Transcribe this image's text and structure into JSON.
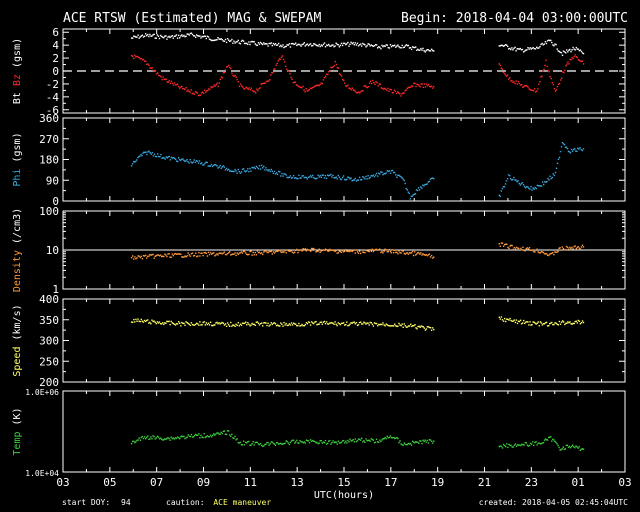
{
  "header": {
    "title": "ACE RTSW (Estimated) MAG & SWEPAM",
    "begin": "Begin: 2018-04-04 03:00:00UTC"
  },
  "footer": {
    "start_doy_label": "start DOY:",
    "start_doy_value": "94",
    "caution_label": "caution:",
    "caution_value": "ACE maneuver",
    "created": "created: 2018-04-05 02:45:04UTC"
  },
  "colors": {
    "background": "#000000",
    "axes": "#ffffff",
    "bt": "#ffffff",
    "bz": "#ff2a2a",
    "phi": "#3aa8e0",
    "density": "#ff9a3c",
    "speed": "#ffff66",
    "temp": "#3ccf3c",
    "caution": "#ffff66"
  },
  "chart_data": {
    "type": "scatter",
    "xlabel": "UTC(hours)",
    "x_unit": "hours since begin",
    "x_tick_labels": [
      "03",
      "05",
      "07",
      "09",
      "11",
      "13",
      "15",
      "17",
      "19",
      "21",
      "23",
      "01",
      "03"
    ],
    "panels": [
      {
        "id": "mag",
        "ylabel_parts": [
          {
            "text": "Bt",
            "color": "#ffffff"
          },
          {
            "text": " Bz",
            "color": "#ff2a2a"
          },
          {
            "text": " (gsm)",
            "color": "#ffffff"
          }
        ],
        "ylim": [
          -6.5,
          6.5
        ],
        "scale": "linear",
        "y_ticks": [
          6,
          4,
          2,
          0,
          -2,
          -4,
          -6
        ],
        "y_tick_labels": [
          "6",
          "4",
          "2",
          "0",
          "-2",
          "-4",
          "-6"
        ],
        "dashed_line": 0,
        "series": [
          {
            "name": "Bt",
            "color": "#ffffff",
            "segments": [
              [
                [
                  2.9,
                  5.2
                ],
                [
                  3.5,
                  5.6
                ],
                [
                  4.5,
                  5.3
                ],
                [
                  5.5,
                  5.7
                ],
                [
                  6.5,
                  5.0
                ],
                [
                  7.5,
                  4.6
                ],
                [
                  8.5,
                  4.2
                ],
                [
                  9.5,
                  4.0
                ],
                [
                  10.5,
                  4.3
                ],
                [
                  11.5,
                  4.1
                ],
                [
                  12.5,
                  4.3
                ],
                [
                  13.5,
                  3.8
                ],
                [
                  14.5,
                  4.0
                ],
                [
                  15.3,
                  3.4
                ],
                [
                  15.8,
                  3.2
                ]
              ],
              [
                [
                  18.6,
                  4.2
                ],
                [
                  19.5,
                  3.3
                ],
                [
                  20.2,
                  3.6
                ],
                [
                  20.8,
                  4.8
                ],
                [
                  21.3,
                  2.8
                ],
                [
                  21.8,
                  3.6
                ],
                [
                  22.2,
                  2.8
                ]
              ]
            ]
          },
          {
            "name": "Bz",
            "color": "#ff2a2a",
            "segments": [
              [
                [
                  2.9,
                  2.5
                ],
                [
                  3.5,
                  1.5
                ],
                [
                  4.2,
                  -1.0
                ],
                [
                  5.0,
                  -2.5
                ],
                [
                  5.8,
                  -3.5
                ],
                [
                  6.6,
                  -2.0
                ],
                [
                  7.0,
                  1.0
                ],
                [
                  7.6,
                  -2.5
                ],
                [
                  8.2,
                  -3.0
                ],
                [
                  8.8,
                  -1.0
                ],
                [
                  9.3,
                  2.5
                ],
                [
                  9.8,
                  -1.5
                ],
                [
                  10.4,
                  -3.0
                ],
                [
                  11.0,
                  -2.0
                ],
                [
                  11.6,
                  1.5
                ],
                [
                  12.0,
                  -2.0
                ],
                [
                  12.6,
                  -3.2
                ],
                [
                  13.2,
                  -1.5
                ],
                [
                  13.8,
                  -2.8
                ],
                [
                  14.4,
                  -3.5
                ],
                [
                  15.0,
                  -2.0
                ],
                [
                  15.8,
                  -2.3
                ]
              ],
              [
                [
                  18.6,
                  1.0
                ],
                [
                  19.0,
                  -1.0
                ],
                [
                  19.6,
                  -2.2
                ],
                [
                  20.2,
                  -3.0
                ],
                [
                  20.6,
                  1.5
                ],
                [
                  21.0,
                  -3.2
                ],
                [
                  21.4,
                  0.5
                ],
                [
                  21.8,
                  2.5
                ],
                [
                  22.2,
                  1.2
                ]
              ]
            ]
          }
        ]
      },
      {
        "id": "phi",
        "ylabel_parts": [
          {
            "text": "Phi",
            "color": "#3aa8e0"
          },
          {
            "text": " (gsm)",
            "color": "#ffffff"
          }
        ],
        "ylim": [
          0,
          360
        ],
        "scale": "linear",
        "y_ticks": [
          360,
          270,
          180,
          90,
          0
        ],
        "y_tick_labels": [
          "360",
          "270",
          "180",
          "90",
          "0"
        ],
        "series": [
          {
            "name": "Phi",
            "color": "#3aa8e0",
            "segments": [
              [
                [
                  2.9,
                  160
                ],
                [
                  3.3,
                  200
                ],
                [
                  3.6,
                  215
                ],
                [
                  4.2,
                  195
                ],
                [
                  5.0,
                  180
                ],
                [
                  5.8,
                  170
                ],
                [
                  6.5,
                  155
                ],
                [
                  7.5,
                  130
                ],
                [
                  8.5,
                  150
                ],
                [
                  9.5,
                  110
                ],
                [
                  10.5,
                  105
                ],
                [
                  11.5,
                  110
                ],
                [
                  12.5,
                  95
                ],
                [
                  13.5,
                  120
                ],
                [
                  14.0,
                  130
                ],
                [
                  14.5,
                  95
                ],
                [
                  14.8,
                  20
                ],
                [
                  15.2,
                  60
                ],
                [
                  15.8,
                  100
                ]
              ],
              [
                [
                  18.6,
                  20
                ],
                [
                  19.0,
                  110
                ],
                [
                  19.5,
                  80
                ],
                [
                  20.0,
                  55
                ],
                [
                  20.5,
                  80
                ],
                [
                  21.0,
                  120
                ],
                [
                  21.3,
                  260
                ],
                [
                  21.6,
                  220
                ],
                [
                  22.0,
                  225
                ],
                [
                  22.2,
                  230
                ]
              ]
            ]
          }
        ]
      },
      {
        "id": "density",
        "ylabel_parts": [
          {
            "text": "Density",
            "color": "#ff9a3c"
          },
          {
            "text": " (/cm3)",
            "color": "#ffffff"
          }
        ],
        "ylim": [
          1,
          100
        ],
        "scale": "log",
        "y_ticks": [
          100,
          10,
          1
        ],
        "y_tick_labels": [
          "100",
          "10",
          "1"
        ],
        "solid_line": 10,
        "series": [
          {
            "name": "Density",
            "color": "#ff9a3c",
            "segments": [
              [
                [
                  2.9,
                  6.5
                ],
                [
                  3.5,
                  7.0
                ],
                [
                  4.5,
                  7.5
                ],
                [
                  5.5,
                  7.8
                ],
                [
                  6.5,
                  8.2
                ],
                [
                  7.5,
                  8.5
                ],
                [
                  8.5,
                  8.8
                ],
                [
                  9.5,
                  9.5
                ],
                [
                  10.5,
                  10.5
                ],
                [
                  11.5,
                  9.8
                ],
                [
                  12.5,
                  9.5
                ],
                [
                  13.5,
                  10.0
                ],
                [
                  14.5,
                  9.0
                ],
                [
                  15.3,
                  8.0
                ],
                [
                  15.8,
                  6.8
                ]
              ],
              [
                [
                  18.6,
                  14.5
                ],
                [
                  19.2,
                  12.0
                ],
                [
                  19.8,
                  11.0
                ],
                [
                  20.4,
                  9.5
                ],
                [
                  20.8,
                  7.5
                ],
                [
                  21.2,
                  11.0
                ],
                [
                  21.8,
                  12.0
                ],
                [
                  22.2,
                  12.5
                ]
              ]
            ]
          }
        ]
      },
      {
        "id": "speed",
        "ylabel_parts": [
          {
            "text": "Speed",
            "color": "#ffff66"
          },
          {
            "text": " (km/s)",
            "color": "#ffffff"
          }
        ],
        "ylim": [
          200,
          400
        ],
        "scale": "linear",
        "y_ticks": [
          400,
          350,
          300,
          250,
          200
        ],
        "y_tick_labels": [
          "400",
          "350",
          "300",
          "250",
          "200"
        ],
        "series": [
          {
            "name": "Speed",
            "color": "#ffff66",
            "segments": [
              [
                [
                  2.9,
                  350
                ],
                [
                  4.0,
                  345
                ],
                [
                  5.0,
                  342
                ],
                [
                  6.0,
                  343
                ],
                [
                  7.0,
                  340
                ],
                [
                  8.0,
                  342
                ],
                [
                  9.0,
                  340
                ],
                [
                  10.0,
                  341
                ],
                [
                  11.0,
                  343
                ],
                [
                  12.0,
                  342
                ],
                [
                  13.0,
                  341
                ],
                [
                  14.0,
                  340
                ],
                [
                  15.0,
                  335
                ],
                [
                  15.8,
                  328
                ]
              ],
              [
                [
                  18.6,
                  355
                ],
                [
                  19.2,
                  348
                ],
                [
                  20.0,
                  343
                ],
                [
                  20.8,
                  340
                ],
                [
                  21.4,
                  345
                ],
                [
                  22.2,
                  345
                ]
              ]
            ]
          }
        ]
      },
      {
        "id": "temp",
        "ylabel_parts": [
          {
            "text": "Temp",
            "color": "#3ccf3c"
          },
          {
            "text": " (K)",
            "color": "#ffffff"
          }
        ],
        "ylim": [
          10000,
          1000000
        ],
        "scale": "log",
        "y_ticks": [
          1000000,
          10000
        ],
        "y_tick_labels": [
          "1.0E+06",
          "1.0E+04"
        ],
        "series": [
          {
            "name": "Temp",
            "color": "#3ccf3c",
            "segments": [
              [
                [
                  2.9,
                  55000
                ],
                [
                  3.5,
                  75000
                ],
                [
                  4.5,
                  70000
                ],
                [
                  5.5,
                  80000
                ],
                [
                  6.5,
                  85000
                ],
                [
                  7.0,
                  100000
                ],
                [
                  7.5,
                  55000
                ],
                [
                  8.5,
                  50000
                ],
                [
                  9.5,
                  55000
                ],
                [
                  10.5,
                  60000
                ],
                [
                  11.5,
                  55000
                ],
                [
                  12.5,
                  65000
                ],
                [
                  13.5,
                  60000
                ],
                [
                  14.0,
                  80000
                ],
                [
                  14.5,
                  50000
                ],
                [
                  15.3,
                  58000
                ],
                [
                  15.8,
                  60000
                ]
              ],
              [
                [
                  18.6,
                  45000
                ],
                [
                  19.2,
                  48000
                ],
                [
                  19.8,
                  50000
                ],
                [
                  20.4,
                  55000
                ],
                [
                  20.8,
                  70000
                ],
                [
                  21.2,
                  40000
                ],
                [
                  21.6,
                  45000
                ],
                [
                  22.2,
                  38000
                ]
              ]
            ]
          }
        ]
      }
    ]
  }
}
